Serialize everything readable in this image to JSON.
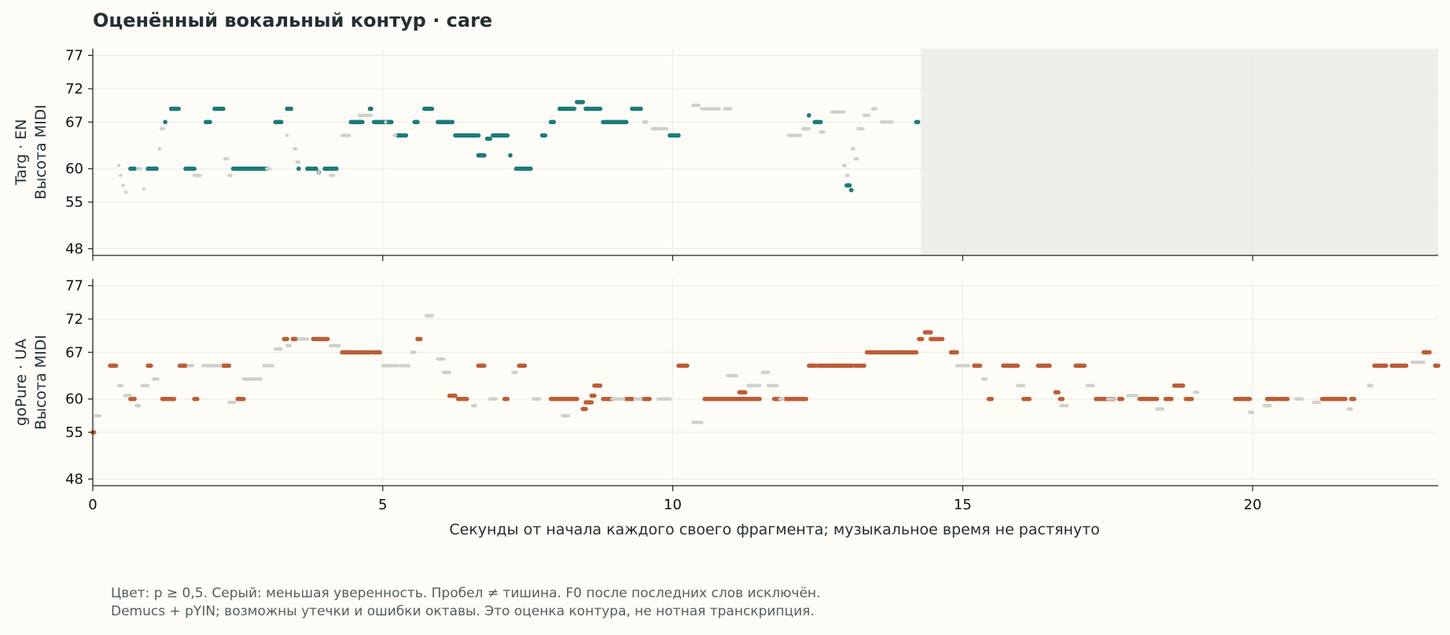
{
  "title": "Оценённый вокальный контур · care",
  "footnote": [
    "Цвет: p ≥ 0,5. Серый: меньшая уверенность. Пробел ≠ тишина. F0 после последних слов исключён.",
    "Demucs + pYIN; возможны утечки и ошибки октавы. Это оценка контура, не нотная транскрипция."
  ],
  "colors": {
    "background": "#fdfcf7",
    "en_confident": "#1c7a78",
    "ua_confident": "#bb5d36",
    "low_confidence": "#cfcfcb",
    "excluded_region": "#efefea",
    "grid": "#ebebe6",
    "axis": "#222222"
  },
  "chart_data": [
    {
      "type": "scatter",
      "title": "",
      "ylabel": [
        "Targ · EN",
        "Высота MIDI"
      ],
      "xlabel": "",
      "xlim": [
        0,
        23.2
      ],
      "ylim": [
        47,
        78
      ],
      "yticks": [
        48,
        55,
        60,
        67,
        72,
        77
      ],
      "xticks": [
        0,
        5,
        10,
        15,
        20
      ],
      "grid": true,
      "excluded_region": {
        "x_start": 14.28,
        "x_end": 23.2
      },
      "series": [
        {
          "role": "confident",
          "segments": [
            [
              0.65,
              0.72,
              60
            ],
            [
              0.95,
              1.1,
              60
            ],
            [
              1.25,
              1.25,
              67
            ],
            [
              1.35,
              1.48,
              69
            ],
            [
              1.6,
              1.75,
              60
            ],
            [
              1.95,
              2.02,
              67
            ],
            [
              2.1,
              2.25,
              69
            ],
            [
              2.42,
              3.0,
              60
            ],
            [
              3.15,
              3.25,
              67
            ],
            [
              3.35,
              3.42,
              69
            ],
            [
              3.55,
              3.55,
              60
            ],
            [
              3.7,
              3.85,
              60
            ],
            [
              3.9,
              3.9,
              59.5
            ],
            [
              4.0,
              4.2,
              60
            ],
            [
              4.45,
              4.65,
              67
            ],
            [
              4.78,
              4.8,
              69
            ],
            [
              4.85,
              5.15,
              67
            ],
            [
              5.25,
              5.4,
              65
            ],
            [
              5.55,
              5.6,
              67
            ],
            [
              5.72,
              5.85,
              69
            ],
            [
              5.95,
              6.2,
              67
            ],
            [
              6.25,
              6.65,
              65
            ],
            [
              6.65,
              6.75,
              62
            ],
            [
              6.8,
              6.85,
              64.5
            ],
            [
              6.9,
              7.15,
              65
            ],
            [
              7.2,
              7.2,
              62
            ],
            [
              7.3,
              7.55,
              60
            ],
            [
              7.75,
              7.8,
              65
            ],
            [
              7.9,
              7.95,
              67
            ],
            [
              8.05,
              8.3,
              69
            ],
            [
              8.35,
              8.45,
              70
            ],
            [
              8.5,
              8.75,
              69
            ],
            [
              8.8,
              9.2,
              67
            ],
            [
              9.3,
              9.45,
              69
            ],
            [
              9.95,
              10.1,
              65
            ],
            [
              12.35,
              12.35,
              68
            ],
            [
              12.45,
              12.55,
              67
            ],
            [
              13.0,
              13.05,
              57.5
            ],
            [
              13.08,
              13.08,
              56.8
            ],
            [
              14.2,
              14.23,
              67
            ]
          ],
          "singles": []
        },
        {
          "role": "low_confidence",
          "segments": [
            [
              0.45,
              0.45,
              60.5
            ],
            [
              0.48,
              0.48,
              59
            ],
            [
              0.52,
              0.52,
              57.5
            ],
            [
              0.57,
              0.57,
              56.5
            ],
            [
              0.78,
              0.82,
              60
            ],
            [
              0.88,
              0.88,
              57
            ],
            [
              1.15,
              1.15,
              63
            ],
            [
              1.18,
              1.22,
              66
            ],
            [
              1.75,
              1.85,
              59
            ],
            [
              2.28,
              2.32,
              61.5
            ],
            [
              2.35,
              2.38,
              59
            ],
            [
              3.0,
              3.05,
              60
            ],
            [
              3.35,
              3.35,
              65
            ],
            [
              3.48,
              3.5,
              63
            ],
            [
              3.52,
              3.55,
              61
            ],
            [
              3.9,
              3.9,
              59.5
            ],
            [
              4.1,
              4.15,
              59
            ],
            [
              4.3,
              4.42,
              65
            ],
            [
              4.6,
              4.8,
              68
            ],
            [
              5.05,
              5.05,
              67
            ],
            [
              5.2,
              5.22,
              65
            ],
            [
              9.5,
              9.55,
              67
            ],
            [
              9.65,
              9.9,
              66
            ],
            [
              10.35,
              10.45,
              69.5
            ],
            [
              10.5,
              10.8,
              69
            ],
            [
              10.9,
              11.0,
              69
            ],
            [
              12.0,
              12.2,
              65
            ],
            [
              12.25,
              12.35,
              66
            ],
            [
              12.55,
              12.6,
              65.5
            ],
            [
              12.75,
              12.95,
              68.5
            ],
            [
              12.95,
              12.97,
              60.5
            ],
            [
              13.0,
              13.02,
              59
            ],
            [
              13.1,
              13.12,
              63
            ],
            [
              13.15,
              13.18,
              61.5
            ],
            [
              13.2,
              13.28,
              66
            ],
            [
              13.3,
              13.38,
              68
            ],
            [
              13.45,
              13.5,
              69
            ],
            [
              13.6,
              13.78,
              67
            ]
          ],
          "singles": []
        }
      ]
    },
    {
      "type": "scatter",
      "title": "",
      "ylabel": [
        "goPure · UA",
        "Высота MIDI"
      ],
      "xlabel": "Секунды от начала каждого своего фрагмента; музыкальное время не растянуто",
      "xlim": [
        0,
        23.2
      ],
      "ylim": [
        47,
        78
      ],
      "yticks": [
        48,
        55,
        60,
        67,
        72,
        77
      ],
      "xticks": [
        0,
        5,
        10,
        15,
        20
      ],
      "grid": true,
      "series": [
        {
          "role": "confident",
          "segments": [
            [
              0.0,
              0.02,
              55
            ],
            [
              0.3,
              0.4,
              65
            ],
            [
              0.65,
              0.72,
              60
            ],
            [
              0.95,
              1.0,
              65
            ],
            [
              1.2,
              1.4,
              60
            ],
            [
              1.5,
              1.6,
              65
            ],
            [
              1.75,
              1.8,
              60
            ],
            [
              2.25,
              2.35,
              65
            ],
            [
              2.5,
              2.6,
              60
            ],
            [
              3.3,
              3.35,
              69
            ],
            [
              3.45,
              3.5,
              69
            ],
            [
              3.8,
              4.05,
              69
            ],
            [
              4.3,
              4.55,
              67
            ],
            [
              4.58,
              4.8,
              67
            ],
            [
              4.85,
              4.95,
              67
            ],
            [
              5.6,
              5.65,
              69
            ],
            [
              6.15,
              6.25,
              60.5
            ],
            [
              6.3,
              6.45,
              60
            ],
            [
              6.65,
              6.75,
              65
            ],
            [
              7.1,
              7.15,
              60
            ],
            [
              7.35,
              7.45,
              65
            ],
            [
              7.9,
              8.35,
              60
            ],
            [
              8.45,
              8.5,
              58.5
            ],
            [
              8.5,
              8.6,
              59.5
            ],
            [
              8.6,
              8.65,
              60.5
            ],
            [
              8.65,
              8.75,
              62
            ],
            [
              8.8,
              8.95,
              60
            ],
            [
              9.2,
              9.3,
              60
            ],
            [
              9.5,
              9.6,
              60
            ],
            [
              10.1,
              10.25,
              65
            ],
            [
              10.55,
              11.5,
              60
            ],
            [
              11.15,
              11.25,
              61
            ],
            [
              11.75,
              11.85,
              60
            ],
            [
              11.95,
              12.3,
              60
            ],
            [
              12.35,
              12.45,
              65
            ],
            [
              12.5,
              12.85,
              65
            ],
            [
              12.85,
              13.1,
              65
            ],
            [
              13.15,
              13.3,
              65
            ],
            [
              13.35,
              14.2,
              67
            ],
            [
              14.25,
              14.3,
              69
            ],
            [
              14.35,
              14.45,
              70
            ],
            [
              14.45,
              14.65,
              69
            ],
            [
              14.8,
              14.9,
              67
            ],
            [
              15.2,
              15.3,
              65
            ],
            [
              15.45,
              15.5,
              60
            ],
            [
              15.7,
              15.95,
              65
            ],
            [
              16.05,
              16.15,
              60
            ],
            [
              16.3,
              16.5,
              65
            ],
            [
              16.6,
              16.65,
              61
            ],
            [
              16.68,
              16.72,
              60
            ],
            [
              16.95,
              17.1,
              65
            ],
            [
              17.3,
              17.6,
              60
            ],
            [
              17.7,
              17.75,
              60
            ],
            [
              18.05,
              18.35,
              60
            ],
            [
              18.5,
              18.6,
              60
            ],
            [
              18.65,
              18.8,
              62
            ],
            [
              18.85,
              18.95,
              60
            ],
            [
              19.7,
              19.95,
              60
            ],
            [
              20.25,
              20.4,
              60
            ],
            [
              20.45,
              20.6,
              60
            ],
            [
              21.2,
              21.6,
              60
            ],
            [
              21.7,
              21.75,
              60
            ],
            [
              22.1,
              22.3,
              65
            ],
            [
              22.4,
              22.65,
              65
            ],
            [
              22.95,
              23.05,
              67
            ],
            [
              23.15,
              23.2,
              65
            ]
          ],
          "singles": []
        },
        {
          "role": "low_confidence",
          "segments": [
            [
              0.05,
              0.12,
              57.5
            ],
            [
              0.45,
              0.5,
              62
            ],
            [
              0.55,
              0.65,
              60.5
            ],
            [
              0.75,
              0.8,
              59
            ],
            [
              0.85,
              0.95,
              62
            ],
            [
              1.05,
              1.12,
              63
            ],
            [
              1.65,
              1.72,
              65
            ],
            [
              1.9,
              2.2,
              65
            ],
            [
              2.35,
              2.45,
              59.5
            ],
            [
              2.6,
              2.9,
              63
            ],
            [
              2.95,
              3.1,
              65
            ],
            [
              3.15,
              3.25,
              67.5
            ],
            [
              3.35,
              3.4,
              68
            ],
            [
              3.55,
              3.7,
              69
            ],
            [
              4.1,
              4.25,
              68
            ],
            [
              5.0,
              5.25,
              65
            ],
            [
              5.3,
              5.45,
              65
            ],
            [
              5.5,
              5.55,
              67
            ],
            [
              5.75,
              5.85,
              72.5
            ],
            [
              5.95,
              6.05,
              66
            ],
            [
              6.05,
              6.15,
              64
            ],
            [
              6.55,
              6.6,
              59
            ],
            [
              6.85,
              6.95,
              60
            ],
            [
              7.25,
              7.3,
              64
            ],
            [
              7.6,
              7.7,
              60
            ],
            [
              8.1,
              8.2,
              57.5
            ],
            [
              8.95,
              9.15,
              60
            ],
            [
              9.35,
              9.45,
              60
            ],
            [
              9.75,
              9.95,
              60
            ],
            [
              10.35,
              10.5,
              56.5
            ],
            [
              10.95,
              11.1,
              63.5
            ],
            [
              11.3,
              11.5,
              62
            ],
            [
              11.55,
              11.65,
              64
            ],
            [
              11.65,
              11.8,
              62
            ],
            [
              11.85,
              11.9,
              60
            ],
            [
              14.9,
              15.1,
              65
            ],
            [
              15.35,
              15.4,
              63
            ],
            [
              15.95,
              16.05,
              62
            ],
            [
              16.7,
              16.8,
              59
            ],
            [
              17.15,
              17.25,
              62
            ],
            [
              17.5,
              17.6,
              60
            ],
            [
              17.85,
              18.0,
              60.5
            ],
            [
              18.35,
              18.45,
              58.5
            ],
            [
              19.0,
              19.05,
              61
            ],
            [
              19.95,
              20.0,
              58
            ],
            [
              20.2,
              20.3,
              59
            ],
            [
              20.75,
              20.85,
              60
            ],
            [
              21.05,
              21.15,
              59.5
            ],
            [
              21.65,
              21.7,
              58.5
            ],
            [
              22.0,
              22.05,
              62
            ],
            [
              22.75,
              22.95,
              65.5
            ]
          ],
          "singles": []
        }
      ]
    }
  ]
}
